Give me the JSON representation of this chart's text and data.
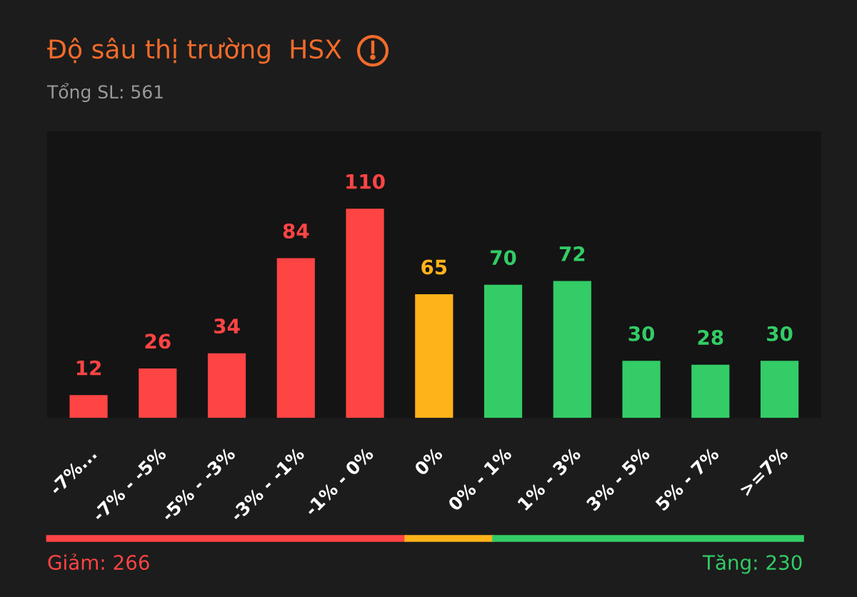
{
  "chart_data": {
    "type": "bar",
    "title": "Độ sâu thị trường  HSX",
    "subtitle": "Tổng SL: 561",
    "categories": [
      "-7%...",
      "-7% - -5%",
      "-5% - -3%",
      "-3% - -1%",
      "-1% - 0%",
      "0%",
      "0% - 1%",
      "1% - 3%",
      "3% - 5%",
      "5% - 7%",
      ">=7%"
    ],
    "values": [
      12,
      26,
      34,
      84,
      110,
      65,
      70,
      72,
      30,
      28,
      30
    ],
    "colors": [
      "#ff4444",
      "#ff4444",
      "#ff4444",
      "#ff4444",
      "#ff4444",
      "#ffb31a",
      "#33cc66",
      "#33cc66",
      "#33cc66",
      "#33cc66",
      "#33cc66"
    ],
    "data_labels": true,
    "grid": false,
    "tick_labels": "x",
    "annotations": [
      "Giảm: 266",
      "Tăng: 230"
    ]
  }
}
